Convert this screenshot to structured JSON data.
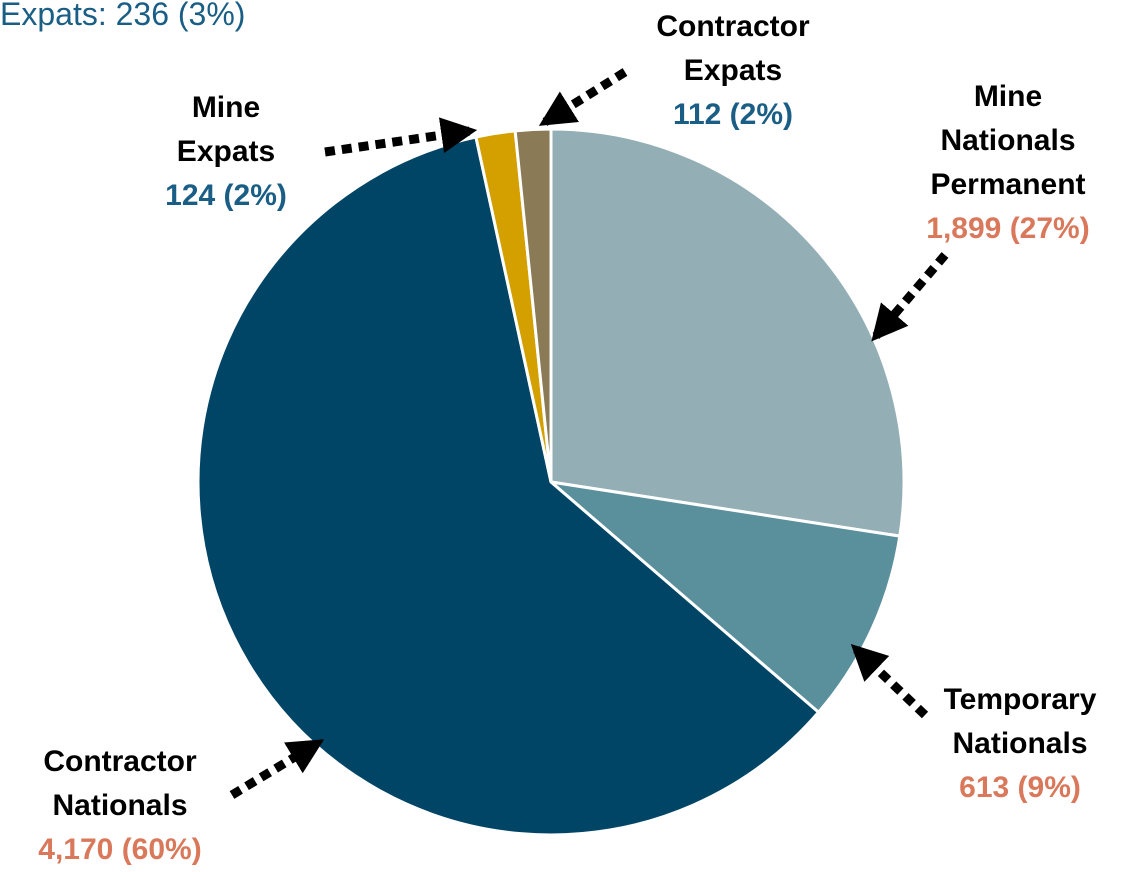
{
  "chart_data": {
    "type": "pie",
    "annotation": "Expats: 236 (3%)",
    "categories": [
      "Mine Nationals Permanent",
      "Temporary Nationals",
      "Contractor Nationals",
      "Mine Expats",
      "Contractor Expats"
    ],
    "values": [
      1899,
      613,
      4170,
      124,
      112
    ],
    "value_labels": [
      "1,899 (27%)",
      "613 (9%)",
      "4,170 (60%)",
      "124 (2%)",
      "112 (2%)"
    ],
    "colors": [
      "#93afb5",
      "#5a8f9c",
      "#004466",
      "#d4a000",
      "#8a7a55"
    ],
    "value_label_colors": [
      "#d9785a",
      "#d9785a",
      "#d9785a",
      "#1a5e85",
      "#1a5e85"
    ]
  }
}
